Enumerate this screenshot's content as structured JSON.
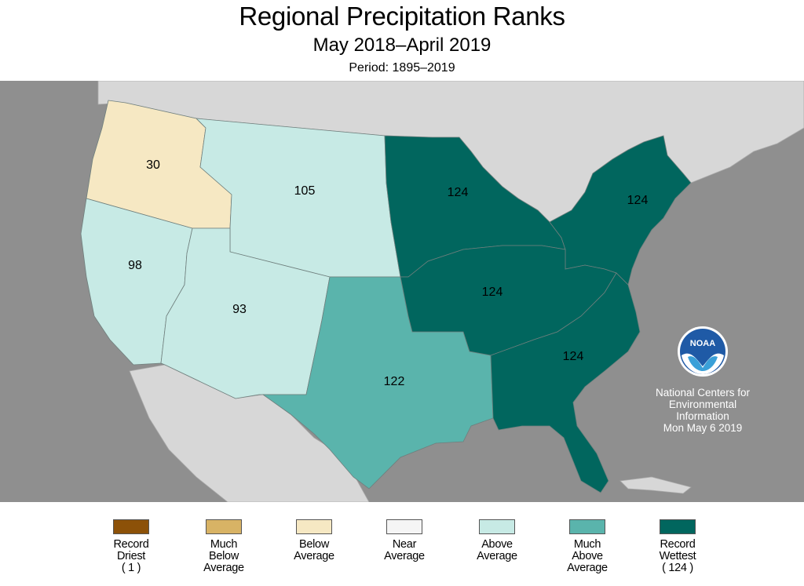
{
  "header": {
    "title": "Regional Precipitation Ranks",
    "subtitle": "May 2018–April 2019",
    "period": "Period: 1895–2019"
  },
  "colors": {
    "ocean": "#8f8f8f",
    "neighbor_land": "#d7d7d7",
    "record_driest": "#8c5108",
    "much_below": "#d8b365",
    "below": "#f6e8c3",
    "near": "#f5f5f5",
    "above": "#c7eae5",
    "much_above": "#5ab4ac",
    "record_wettest": "#01665e"
  },
  "regions": [
    {
      "id": "northwest",
      "rank": "30",
      "category": "below"
    },
    {
      "id": "west-north-central",
      "rank": "105",
      "category": "above"
    },
    {
      "id": "west",
      "rank": "98",
      "category": "above"
    },
    {
      "id": "southwest",
      "rank": "93",
      "category": "above"
    },
    {
      "id": "south",
      "rank": "122",
      "category": "much_above"
    },
    {
      "id": "east-north-central",
      "rank": "124",
      "category": "record_wettest"
    },
    {
      "id": "northeast",
      "rank": "124",
      "category": "record_wettest"
    },
    {
      "id": "central",
      "rank": "124",
      "category": "record_wettest"
    },
    {
      "id": "southeast",
      "rank": "124",
      "category": "record_wettest"
    }
  ],
  "legend": [
    {
      "key": "record_driest",
      "lines": [
        "Record",
        "Driest",
        "( 1 )"
      ]
    },
    {
      "key": "much_below",
      "lines": [
        "Much",
        "Below",
        "Average"
      ]
    },
    {
      "key": "below",
      "lines": [
        "Below",
        "Average"
      ]
    },
    {
      "key": "near",
      "lines": [
        "Near",
        "Average"
      ]
    },
    {
      "key": "above",
      "lines": [
        "Above",
        "Average"
      ]
    },
    {
      "key": "much_above",
      "lines": [
        "Much",
        "Above",
        "Average"
      ]
    },
    {
      "key": "record_wettest",
      "lines": [
        "Record",
        "Wettest",
        "( 124 )"
      ]
    }
  ],
  "noaa": {
    "logo_text": "NOAA",
    "lines": [
      "National Centers for",
      "Environmental",
      "Information",
      "Mon May  6 2019"
    ]
  }
}
